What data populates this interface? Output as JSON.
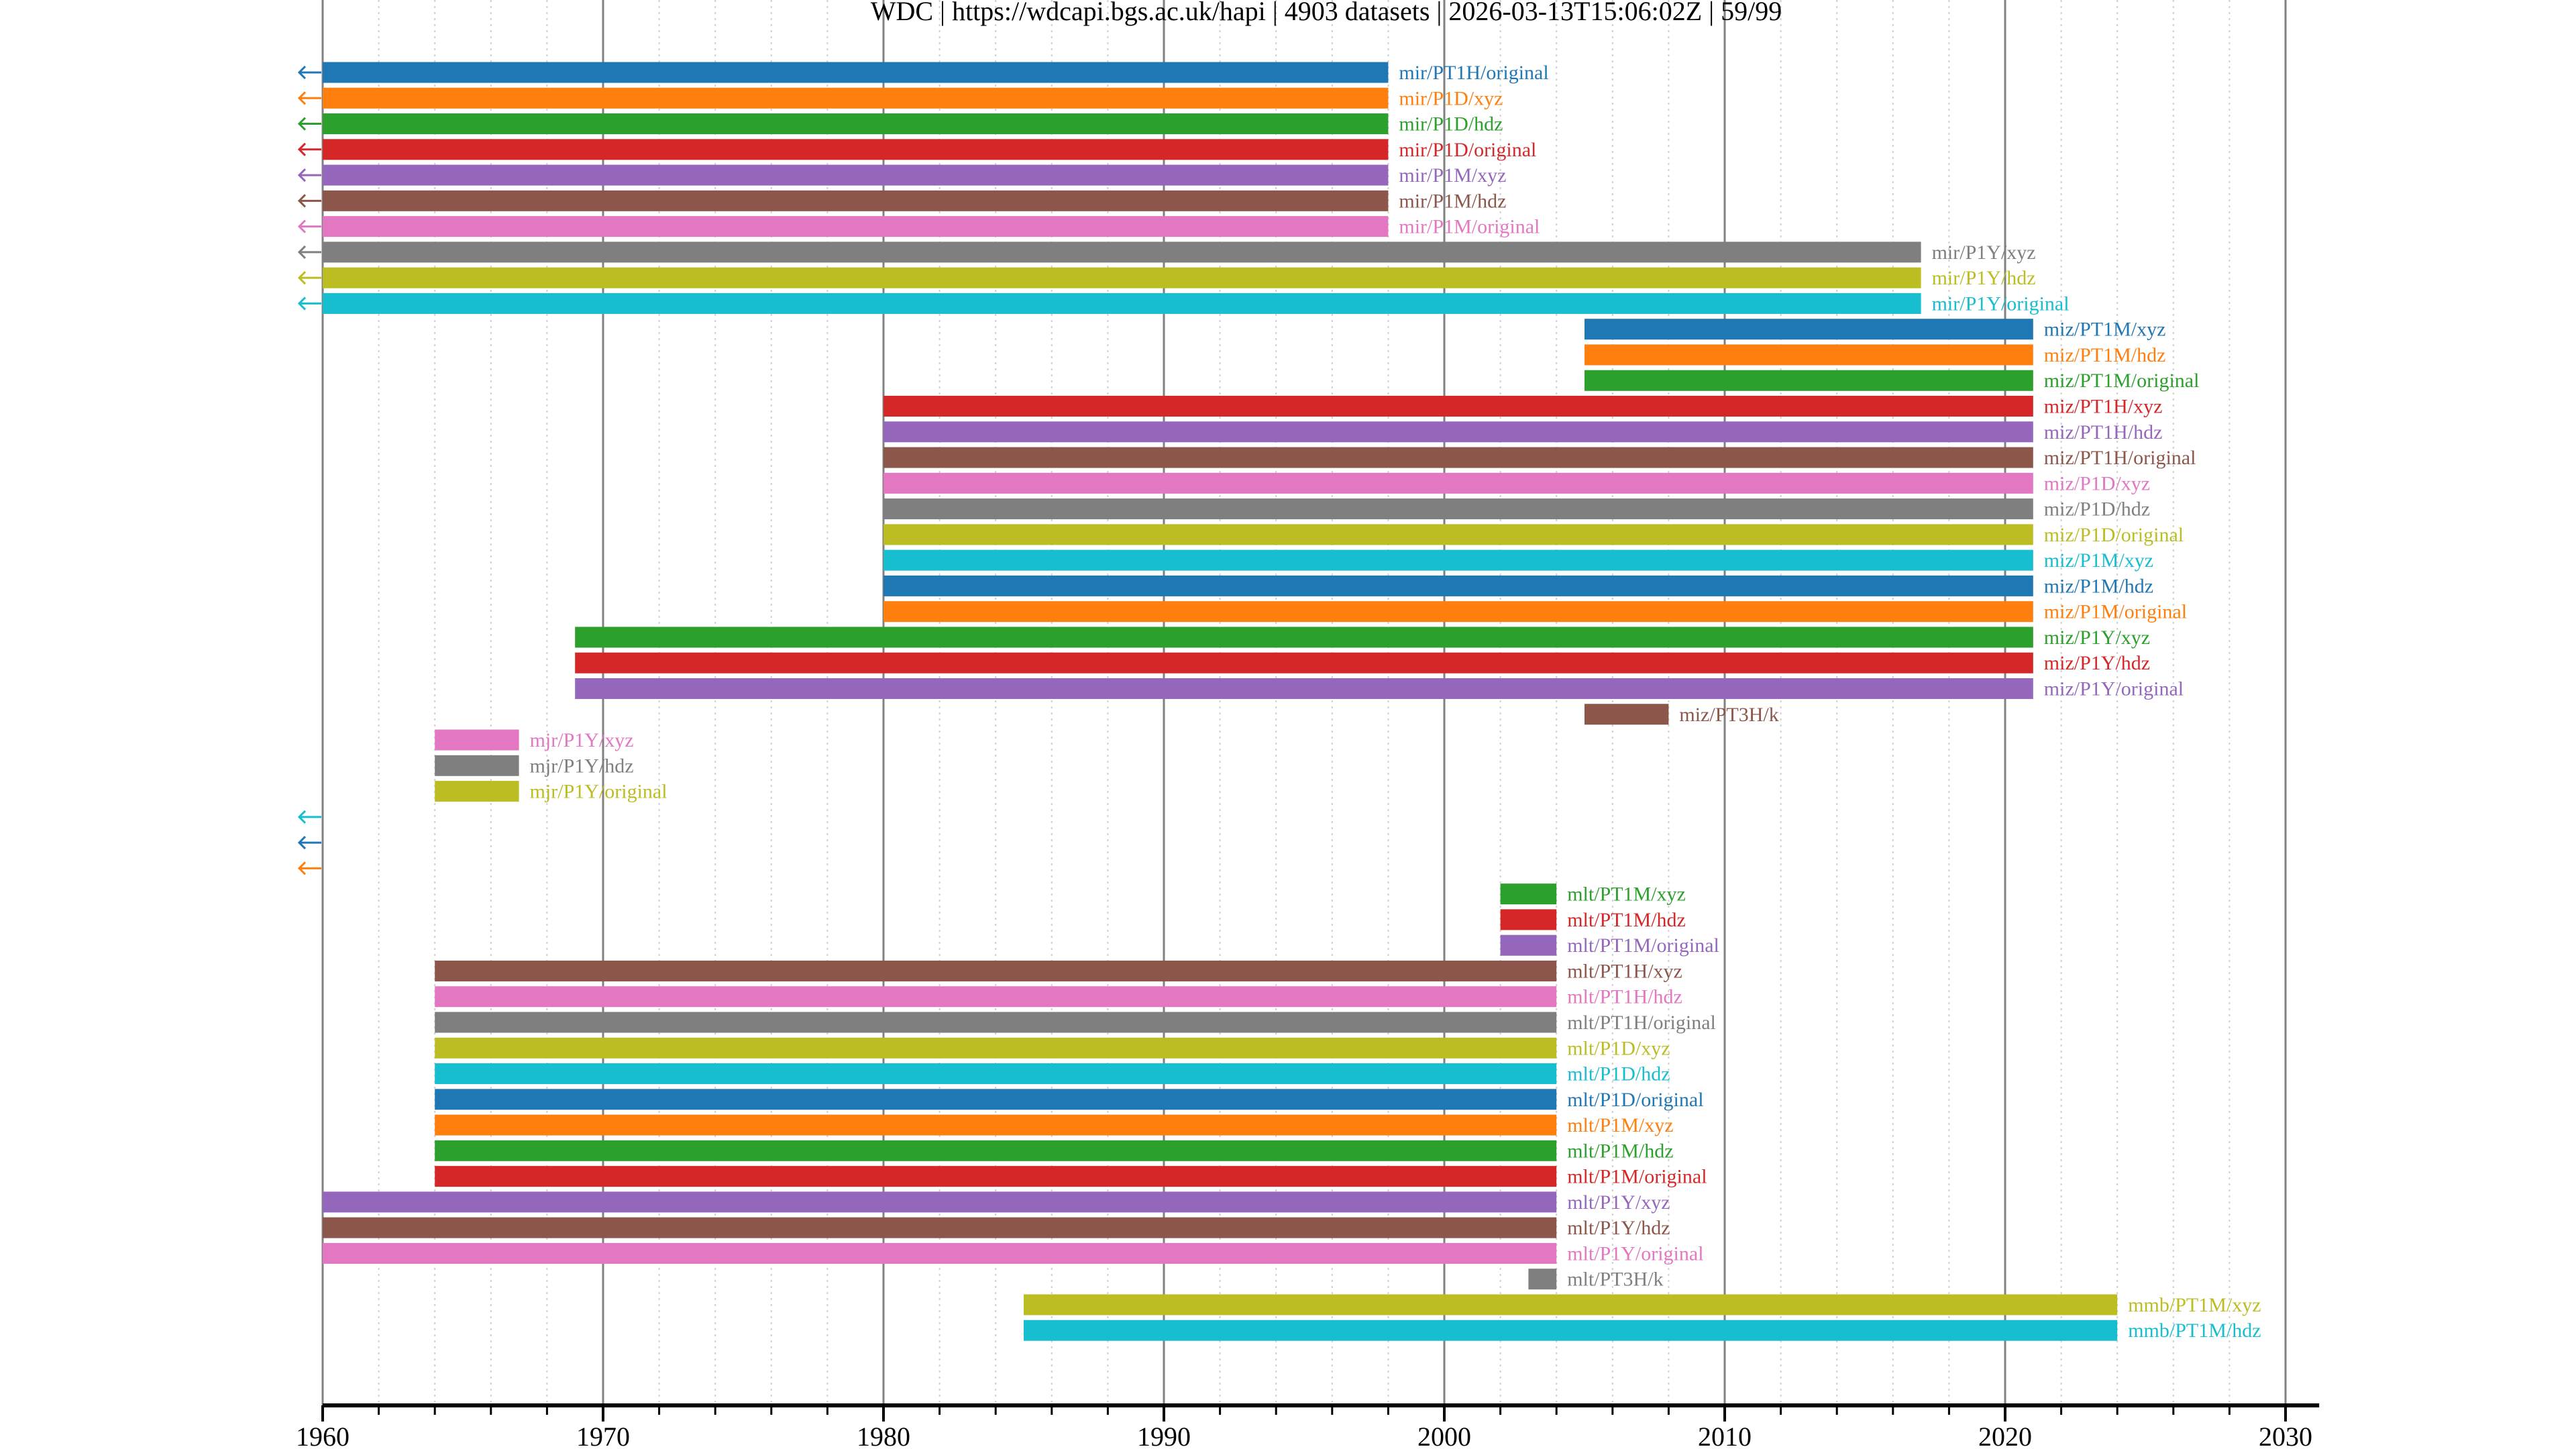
{
  "chart_data": {
    "type": "gantt",
    "title": "WDC | https://wdcapi.bgs.ac.uk/hapi | 4903 datasets | 2026-03-13T15:06:02Z | 59/99",
    "xlabel": "",
    "ylabel": "",
    "xlim": [
      1960,
      2031.2
    ],
    "x_major_ticks": [
      1960,
      1970,
      1980,
      1990,
      2000,
      2010,
      2020,
      2030
    ],
    "x_tick_labels": [
      "1960",
      "1970",
      "1980",
      "1990",
      "2000",
      "2010",
      "2020",
      "2030"
    ],
    "x_minor_step_years": 2,
    "grid": "major solid, minor dotted",
    "palette": [
      "#1f77b4",
      "#ff7f0e",
      "#2ca02c",
      "#d62728",
      "#9467bd",
      "#8c564b",
      "#e377c2",
      "#7f7f7f",
      "#bcbd22",
      "#17becf"
    ],
    "rows": [
      {
        "label": "mir/PT1H/original",
        "start": 1960,
        "end": 1998,
        "starts_before_xlim": true,
        "color": "#1f77b4"
      },
      {
        "label": "mir/P1D/xyz",
        "start": 1960,
        "end": 1998,
        "starts_before_xlim": true,
        "color": "#ff7f0e"
      },
      {
        "label": "mir/P1D/hdz",
        "start": 1960,
        "end": 1998,
        "starts_before_xlim": true,
        "color": "#2ca02c"
      },
      {
        "label": "mir/P1D/original",
        "start": 1960,
        "end": 1998,
        "starts_before_xlim": true,
        "color": "#d62728"
      },
      {
        "label": "mir/P1M/xyz",
        "start": 1960,
        "end": 1998,
        "starts_before_xlim": true,
        "color": "#9467bd"
      },
      {
        "label": "mir/P1M/hdz",
        "start": 1960,
        "end": 1998,
        "starts_before_xlim": true,
        "color": "#8c564b"
      },
      {
        "label": "mir/P1M/original",
        "start": 1960,
        "end": 1998,
        "starts_before_xlim": true,
        "color": "#e377c2"
      },
      {
        "label": "mir/P1Y/xyz",
        "start": 1960,
        "end": 2017,
        "starts_before_xlim": true,
        "color": "#7f7f7f"
      },
      {
        "label": "mir/P1Y/hdz",
        "start": 1960,
        "end": 2017,
        "starts_before_xlim": true,
        "color": "#bcbd22"
      },
      {
        "label": "mir/P1Y/original",
        "start": 1960,
        "end": 2017,
        "starts_before_xlim": true,
        "color": "#17becf"
      },
      {
        "label": "miz/PT1M/xyz",
        "start": 2005,
        "end": 2021,
        "starts_before_xlim": false,
        "color": "#1f77b4"
      },
      {
        "label": "miz/PT1M/hdz",
        "start": 2005,
        "end": 2021,
        "starts_before_xlim": false,
        "color": "#ff7f0e"
      },
      {
        "label": "miz/PT1M/original",
        "start": 2005,
        "end": 2021,
        "starts_before_xlim": false,
        "color": "#2ca02c"
      },
      {
        "label": "miz/PT1H/xyz",
        "start": 1980,
        "end": 2021,
        "starts_before_xlim": false,
        "color": "#d62728"
      },
      {
        "label": "miz/PT1H/hdz",
        "start": 1980,
        "end": 2021,
        "starts_before_xlim": false,
        "color": "#9467bd"
      },
      {
        "label": "miz/PT1H/original",
        "start": 1980,
        "end": 2021,
        "starts_before_xlim": false,
        "color": "#8c564b"
      },
      {
        "label": "miz/P1D/xyz",
        "start": 1980,
        "end": 2021,
        "starts_before_xlim": false,
        "color": "#e377c2"
      },
      {
        "label": "miz/P1D/hdz",
        "start": 1980,
        "end": 2021,
        "starts_before_xlim": false,
        "color": "#7f7f7f"
      },
      {
        "label": "miz/P1D/original",
        "start": 1980,
        "end": 2021,
        "starts_before_xlim": false,
        "color": "#bcbd22"
      },
      {
        "label": "miz/P1M/xyz",
        "start": 1980,
        "end": 2021,
        "starts_before_xlim": false,
        "color": "#17becf"
      },
      {
        "label": "miz/P1M/hdz",
        "start": 1980,
        "end": 2021,
        "starts_before_xlim": false,
        "color": "#1f77b4"
      },
      {
        "label": "miz/P1M/original",
        "start": 1980,
        "end": 2021,
        "starts_before_xlim": false,
        "color": "#ff7f0e"
      },
      {
        "label": "miz/P1Y/xyz",
        "start": 1969,
        "end": 2021,
        "starts_before_xlim": false,
        "color": "#2ca02c"
      },
      {
        "label": "miz/P1Y/hdz",
        "start": 1969,
        "end": 2021,
        "starts_before_xlim": false,
        "color": "#d62728"
      },
      {
        "label": "miz/P1Y/original",
        "start": 1969,
        "end": 2021,
        "starts_before_xlim": false,
        "color": "#9467bd"
      },
      {
        "label": "miz/PT3H/k",
        "start": 2005,
        "end": 2008,
        "starts_before_xlim": false,
        "color": "#8c564b"
      },
      {
        "label": "mjr/P1Y/xyz",
        "start": 1964,
        "end": 1967,
        "starts_before_xlim": false,
        "color": "#e377c2"
      },
      {
        "label": "mjr/P1Y/hdz",
        "start": 1964,
        "end": 1967,
        "starts_before_xlim": false,
        "color": "#7f7f7f"
      },
      {
        "label": "mjr/P1Y/original",
        "start": 1964,
        "end": 1967,
        "starts_before_xlim": false,
        "color": "#bcbd22"
      },
      {
        "label": "",
        "start": null,
        "end": null,
        "starts_before_xlim": true,
        "color": "#17becf"
      },
      {
        "label": "",
        "start": null,
        "end": null,
        "starts_before_xlim": true,
        "color": "#1f77b4"
      },
      {
        "label": "",
        "start": null,
        "end": null,
        "starts_before_xlim": true,
        "color": "#ff7f0e"
      },
      {
        "label": "mlt/PT1M/xyz",
        "start": 2002,
        "end": 2004,
        "starts_before_xlim": false,
        "color": "#2ca02c"
      },
      {
        "label": "mlt/PT1M/hdz",
        "start": 2002,
        "end": 2004,
        "starts_before_xlim": false,
        "color": "#d62728"
      },
      {
        "label": "mlt/PT1M/original",
        "start": 2002,
        "end": 2004,
        "starts_before_xlim": false,
        "color": "#9467bd"
      },
      {
        "label": "mlt/PT1H/xyz",
        "start": 1964,
        "end": 2004,
        "starts_before_xlim": false,
        "color": "#8c564b"
      },
      {
        "label": "mlt/PT1H/hdz",
        "start": 1964,
        "end": 2004,
        "starts_before_xlim": false,
        "color": "#e377c2"
      },
      {
        "label": "mlt/PT1H/original",
        "start": 1964,
        "end": 2004,
        "starts_before_xlim": false,
        "color": "#7f7f7f"
      },
      {
        "label": "mlt/P1D/xyz",
        "start": 1964,
        "end": 2004,
        "starts_before_xlim": false,
        "color": "#bcbd22"
      },
      {
        "label": "mlt/P1D/hdz",
        "start": 1964,
        "end": 2004,
        "starts_before_xlim": false,
        "color": "#17becf"
      },
      {
        "label": "mlt/P1D/original",
        "start": 1964,
        "end": 2004,
        "starts_before_xlim": false,
        "color": "#1f77b4"
      },
      {
        "label": "mlt/P1M/xyz",
        "start": 1964,
        "end": 2004,
        "starts_before_xlim": false,
        "color": "#ff7f0e"
      },
      {
        "label": "mlt/P1M/hdz",
        "start": 1964,
        "end": 2004,
        "starts_before_xlim": false,
        "color": "#2ca02c"
      },
      {
        "label": "mlt/P1M/original",
        "start": 1964,
        "end": 2004,
        "starts_before_xlim": false,
        "color": "#d62728"
      },
      {
        "label": "mlt/P1Y/xyz",
        "start": 1960,
        "end": 2004,
        "starts_before_xlim": false,
        "color": "#9467bd"
      },
      {
        "label": "mlt/P1Y/hdz",
        "start": 1960,
        "end": 2004,
        "starts_before_xlim": false,
        "color": "#8c564b"
      },
      {
        "label": "mlt/P1Y/original",
        "start": 1960,
        "end": 2004,
        "starts_before_xlim": false,
        "color": "#e377c2"
      },
      {
        "label": "mlt/PT3H/k",
        "start": 2003,
        "end": 2004,
        "starts_before_xlim": false,
        "color": "#7f7f7f"
      },
      {
        "label": "mmb/PT1M/xyz",
        "start": 1985,
        "end": 2024,
        "starts_before_xlim": false,
        "color": "#bcbd22"
      },
      {
        "label": "mmb/PT1M/hdz",
        "start": 1985,
        "end": 2024,
        "starts_before_xlim": false,
        "color": "#17becf"
      }
    ]
  }
}
